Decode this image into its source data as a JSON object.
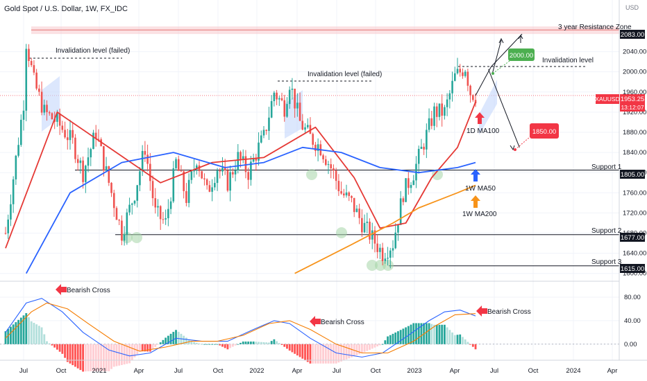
{
  "header": {
    "symbol_title": "Gold Spot / U.S. Dollar, 1W, FX_IDC"
  },
  "axis": {
    "currency": "USD"
  },
  "annotations": {
    "resistance_zone": "3 year Resistance Zone",
    "invalidation_failed": "Invalidation level (failed)",
    "invalidation": "Invalidation level",
    "support1": "Support 1",
    "support2": "Support 2",
    "support3": "Support 3",
    "ma100_1d": "1D MA100",
    "ma50_1w": "1W MA50",
    "ma200_1w": "1W MA200",
    "target_up": "2000.00",
    "target_down": "1850.00",
    "bearish_cross": "Bearish Cross"
  },
  "price_tags": {
    "resistance": "2083.00",
    "support1": "1805.00",
    "support2": "1677.00",
    "support3": "1615.00",
    "current_symbol": "XAUUSD",
    "current_price": "1953.25",
    "countdown": "13:12:07"
  },
  "colors": {
    "bull": "#26a69a",
    "bear": "#ef5350",
    "ma100": "#e53935",
    "ma50": "#2962ff",
    "ma200": "#f7931a",
    "macd": "#2962ff",
    "signal": "#f57c00",
    "green_label": "#4caf50",
    "red_label": "#f23645",
    "resistance_fill": "#f8c8cc",
    "current_tag": "#f23645",
    "hist_pos_strong": "#26a69a",
    "hist_pos_weak": "#b2dfdb",
    "hist_neg_strong": "#ff5252",
    "hist_neg_weak": "#ffcdd2"
  },
  "chart_data": {
    "type": "candlestick",
    "title": "Gold Spot / U.S. Dollar, 1W, FX_IDC",
    "ylabel": "USD",
    "y_ticks": [
      1600,
      1640,
      1680,
      1720,
      1760,
      1800,
      1840,
      1880,
      1920,
      1960,
      2000,
      2040
    ],
    "x_ticks": [
      "Jul",
      "Oct",
      "2021",
      "Apr",
      "Jul",
      "Oct",
      "2022",
      "Apr",
      "Jul",
      "Oct",
      "2023",
      "Apr",
      "Jul",
      "Oct",
      "2024",
      "Apr"
    ],
    "price_range": [
      1590,
      2115
    ],
    "waypoints": [
      [
        0,
        1680
      ],
      [
        3,
        1790
      ],
      [
        7,
        1940
      ],
      [
        8,
        2060
      ],
      [
        11,
        1980
      ],
      [
        15,
        1920
      ],
      [
        20,
        1900
      ],
      [
        26,
        1860
      ],
      [
        30,
        1800
      ],
      [
        35,
        1880
      ],
      [
        40,
        1780
      ],
      [
        45,
        1680
      ],
      [
        50,
        1760
      ],
      [
        54,
        1850
      ],
      [
        58,
        1720
      ],
      [
        62,
        1700
      ],
      [
        66,
        1820
      ],
      [
        70,
        1750
      ],
      [
        74,
        1830
      ],
      [
        78,
        1760
      ],
      [
        82,
        1810
      ],
      [
        86,
        1780
      ],
      [
        90,
        1830
      ],
      [
        94,
        1800
      ],
      [
        98,
        1850
      ],
      [
        100,
        1870
      ],
      [
        104,
        1960
      ],
      [
        108,
        1930
      ],
      [
        110,
        1980
      ],
      [
        114,
        1900
      ],
      [
        118,
        1870
      ],
      [
        122,
        1850
      ],
      [
        126,
        1810
      ],
      [
        130,
        1760
      ],
      [
        134,
        1740
      ],
      [
        138,
        1700
      ],
      [
        142,
        1670
      ],
      [
        146,
        1640
      ],
      [
        150,
        1660
      ],
      [
        154,
        1760
      ],
      [
        158,
        1800
      ],
      [
        162,
        1860
      ],
      [
        166,
        1920
      ],
      [
        170,
        1920
      ],
      [
        174,
        1990
      ],
      [
        178,
        2010
      ],
      [
        180,
        1960
      ],
      [
        182,
        1953
      ]
    ],
    "candle_count": 183,
    "moving_averages": [
      {
        "name": "1D MA100",
        "points": [
          [
            0,
            1650
          ],
          [
            20,
            1920
          ],
          [
            40,
            1850
          ],
          [
            60,
            1780
          ],
          [
            80,
            1820
          ],
          [
            100,
            1830
          ],
          [
            120,
            1890
          ],
          [
            135,
            1790
          ],
          [
            145,
            1690
          ],
          [
            155,
            1700
          ],
          [
            165,
            1790
          ],
          [
            175,
            1850
          ],
          [
            182,
            1940
          ]
        ]
      },
      {
        "name": "1W MA50",
        "points": [
          [
            8,
            1600
          ],
          [
            25,
            1760
          ],
          [
            45,
            1820
          ],
          [
            65,
            1840
          ],
          [
            85,
            1810
          ],
          [
            100,
            1820
          ],
          [
            115,
            1850
          ],
          [
            130,
            1840
          ],
          [
            145,
            1810
          ],
          [
            160,
            1800
          ],
          [
            175,
            1810
          ],
          [
            182,
            1820
          ]
        ]
      },
      {
        "name": "1W MA200",
        "points": [
          [
            112,
            1600
          ],
          [
            135,
            1660
          ],
          [
            150,
            1700
          ],
          [
            160,
            1730
          ],
          [
            175,
            1760
          ],
          [
            182,
            1775
          ]
        ]
      }
    ],
    "levels": [
      {
        "name": "3 year Resistance Zone",
        "value": 2083,
        "band": [
          2075,
          2090
        ]
      },
      {
        "name": "Invalidation level (failed)",
        "value": 2035
      },
      {
        "name": "Invalidation level (failed)",
        "value": 1990
      },
      {
        "name": "Invalidation level",
        "value": 2018
      },
      {
        "name": "Support 1",
        "value": 1805
      },
      {
        "name": "Support 2",
        "value": 1677
      },
      {
        "name": "Support 3",
        "value": 1615
      }
    ],
    "projection": {
      "path": [
        [
          182,
          1953
        ],
        [
          188,
          2010
        ],
        [
          200,
          2075
        ]
      ],
      "alt_path": [
        [
          187,
          2005
        ],
        [
          199,
          1850
        ]
      ],
      "targets": [
        2000,
        1850
      ]
    },
    "macd_panel": {
      "y_ticks": [
        0,
        40,
        80
      ],
      "range": [
        -25,
        100
      ],
      "macd": [
        [
          0,
          20
        ],
        [
          8,
          70
        ],
        [
          14,
          78
        ],
        [
          22,
          55
        ],
        [
          30,
          20
        ],
        [
          40,
          -10
        ],
        [
          48,
          -20
        ],
        [
          56,
          -15
        ],
        [
          66,
          10
        ],
        [
          76,
          5
        ],
        [
          86,
          5
        ],
        [
          96,
          25
        ],
        [
          104,
          40
        ],
        [
          110,
          35
        ],
        [
          118,
          10
        ],
        [
          128,
          -15
        ],
        [
          138,
          -22
        ],
        [
          146,
          -15
        ],
        [
          156,
          15
        ],
        [
          164,
          40
        ],
        [
          170,
          55
        ],
        [
          176,
          58
        ],
        [
          182,
          48
        ]
      ],
      "signal": [
        [
          0,
          10
        ],
        [
          10,
          55
        ],
        [
          16,
          70
        ],
        [
          24,
          60
        ],
        [
          32,
          35
        ],
        [
          42,
          5
        ],
        [
          52,
          -12
        ],
        [
          62,
          -5
        ],
        [
          72,
          5
        ],
        [
          82,
          5
        ],
        [
          92,
          15
        ],
        [
          102,
          35
        ],
        [
          110,
          40
        ],
        [
          118,
          25
        ],
        [
          128,
          0
        ],
        [
          138,
          -15
        ],
        [
          148,
          -15
        ],
        [
          158,
          5
        ],
        [
          166,
          30
        ],
        [
          174,
          50
        ],
        [
          182,
          52
        ]
      ]
    }
  }
}
